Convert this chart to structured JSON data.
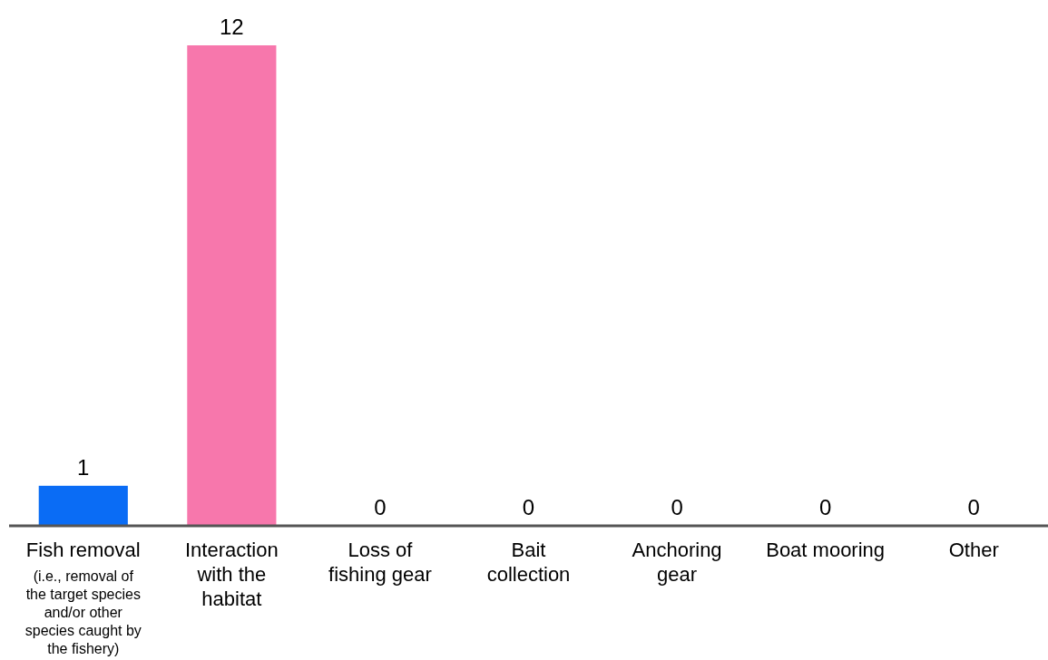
{
  "chart_data": {
    "type": "bar",
    "categories": [
      "Fish removal",
      "Interaction with the habitat",
      "Loss of fishing gear",
      "Bait collection",
      "Anchoring gear",
      "Boat mooring",
      "Other"
    ],
    "values": [
      1,
      12,
      0,
      0,
      0,
      0,
      0
    ],
    "colors": [
      "#0a6cf5",
      "#f777ac",
      "#0a6cf5",
      "#0a6cf5",
      "#0a6cf5",
      "#0a6cf5",
      "#0a6cf5"
    ],
    "data_labels": true,
    "annotations": [
      "(i.e., removal of the target species and/or other species caught by the fishery)"
    ]
  }
}
